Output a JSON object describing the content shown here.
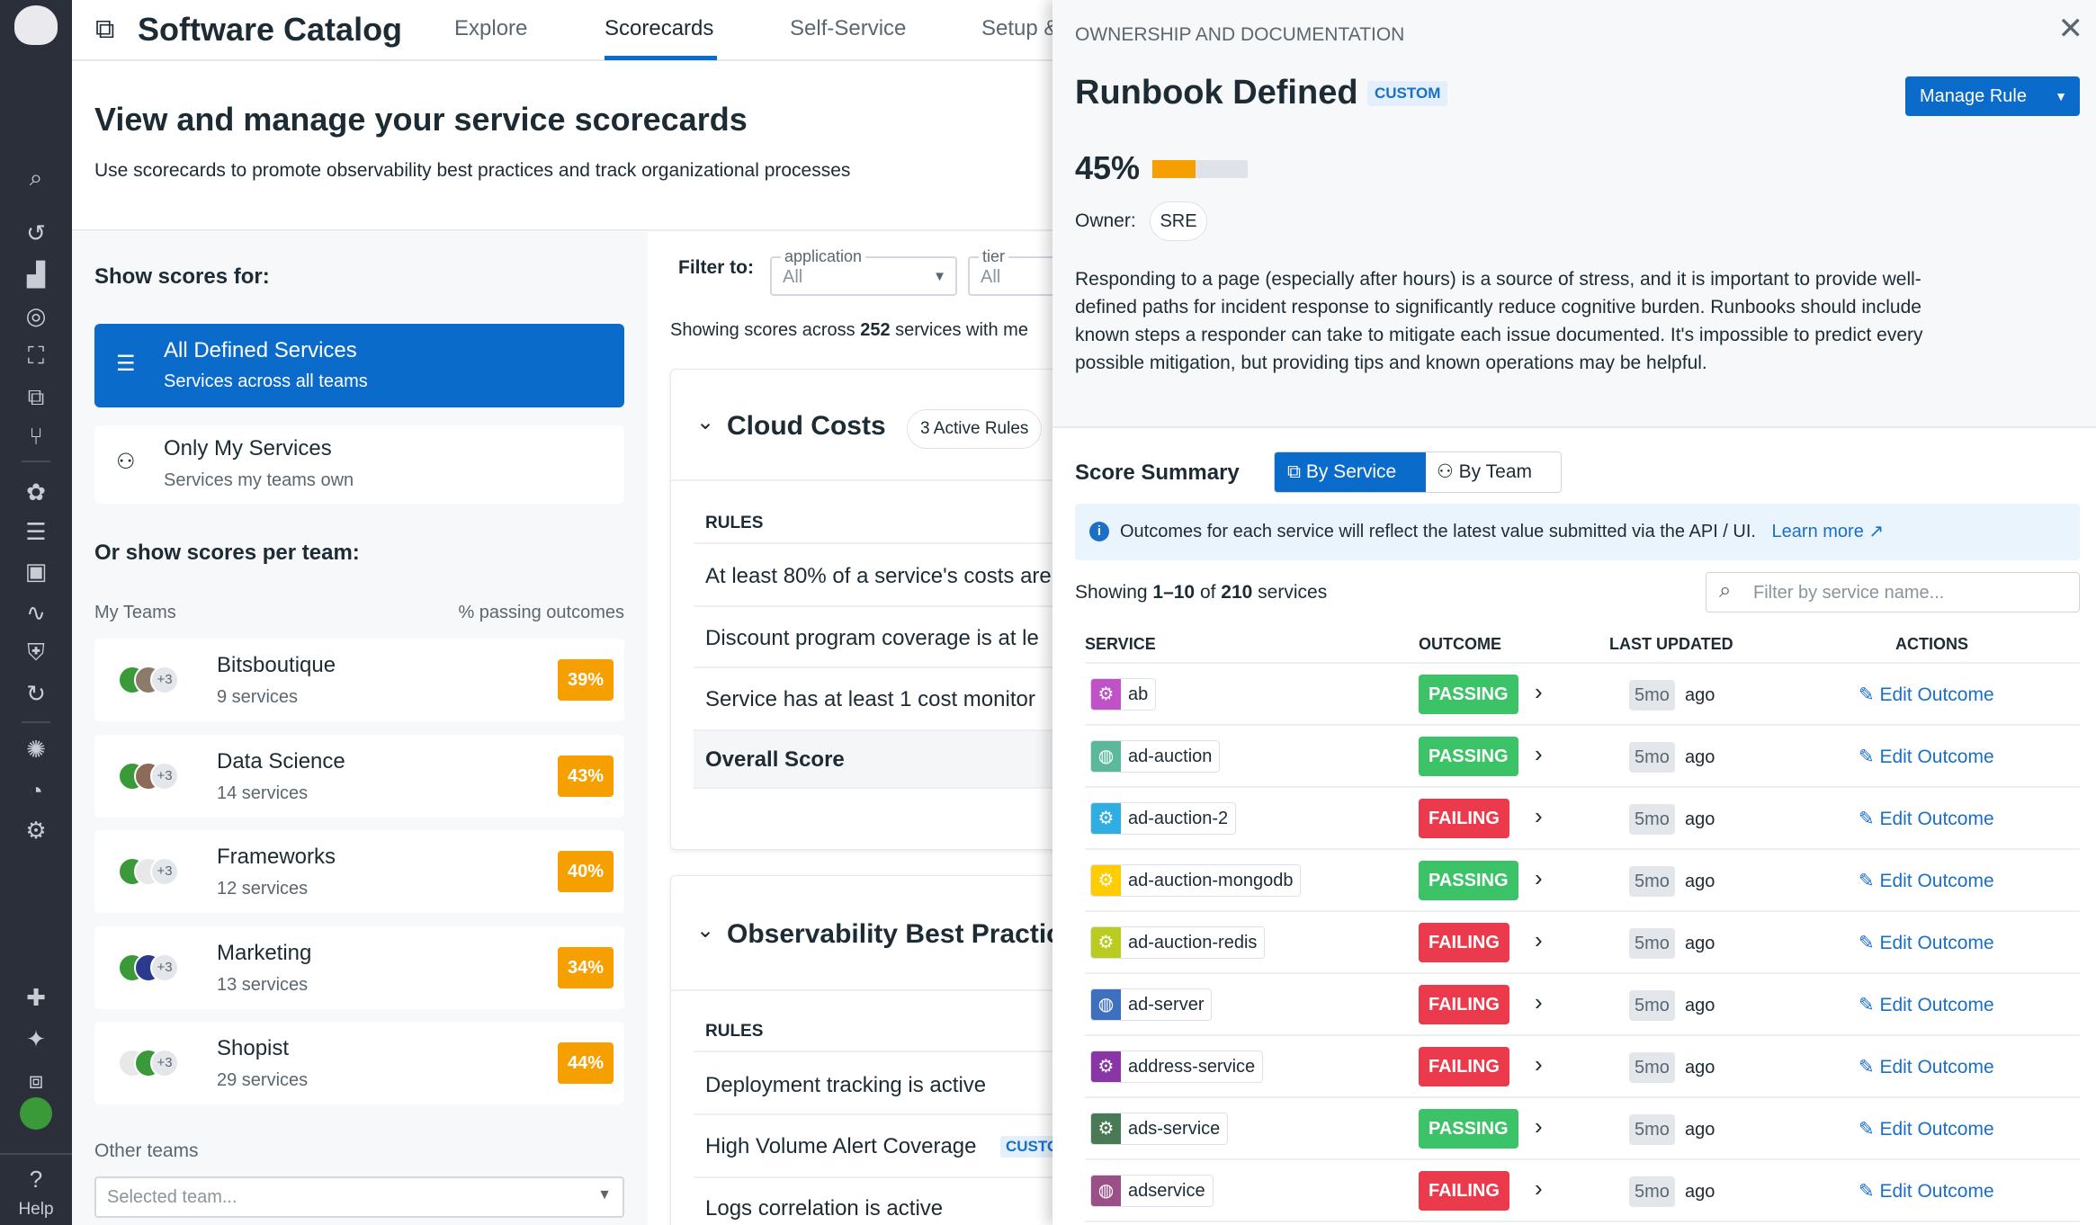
{
  "sidebar": {
    "icons": [
      "search-icon",
      "history-icon",
      "dashboard-icon",
      "target-icon",
      "binoculars-icon",
      "catalog-icon",
      "pipeline-icon",
      "apm-icon",
      "logs-icon",
      "infrastructure-icon",
      "workflow-icon",
      "security-icon",
      "synthetics-icon",
      "bug-icon",
      "performance-icon",
      "watchdog-icon",
      "integrations-icon",
      "ai-icon",
      "screens-icon"
    ],
    "help_label": "Help"
  },
  "header": {
    "title": "Software Catalog",
    "tabs": [
      "Explore",
      "Scorecards",
      "Self-Service",
      "Setup &"
    ],
    "active_tab": "Scorecards"
  },
  "hero": {
    "title": "View and manage your service scorecards",
    "subtitle": "Use scorecards to promote observability best practices and track organizational processes"
  },
  "left": {
    "show_scores_for": "Show scores for:",
    "options": [
      {
        "title": "All Defined Services",
        "subtitle": "Services across all teams",
        "selected": true
      },
      {
        "title": "Only My Services",
        "subtitle": "Services my teams own",
        "selected": false
      }
    ],
    "per_team": "Or show scores per team:",
    "my_teams": "My Teams",
    "pct_header": "% passing outcomes",
    "teams": [
      {
        "name": "Bitsboutique",
        "services": "9 services",
        "pct": "39%",
        "more": "+3"
      },
      {
        "name": "Data Science",
        "services": "14 services",
        "pct": "43%",
        "more": "+3"
      },
      {
        "name": "Frameworks",
        "services": "12 services",
        "pct": "40%",
        "more": "+3"
      },
      {
        "name": "Marketing",
        "services": "13 services",
        "pct": "34%",
        "more": "+3"
      },
      {
        "name": "Shopist",
        "services": "29 services",
        "pct": "44%",
        "more": "+3"
      }
    ],
    "other_teams": "Other teams",
    "team_select_placeholder": "Selected team..."
  },
  "mid": {
    "filter_label": "Filter to:",
    "filters": [
      {
        "label": "application",
        "value": "All"
      },
      {
        "label": "tier",
        "value": "All"
      }
    ],
    "showing_prefix": "Showing scores across ",
    "showing_count": "252",
    "showing_suffix": " services with me",
    "scorecards": [
      {
        "title": "Cloud Costs",
        "pill": "3 Active Rules",
        "rules_header": "RULES",
        "rules": [
          "At least 80% of a service's costs are",
          "Discount program coverage is at le",
          "Service has at least 1 cost monitor"
        ],
        "overall": "Overall Score"
      },
      {
        "title": "Observability Best Practic",
        "rules_header": "RULES",
        "rules": [
          "Deployment tracking is active",
          "High Volume Alert Coverage",
          "Logs correlation is active"
        ],
        "custom_badge": "CUSTO"
      }
    ]
  },
  "drawer": {
    "category": "OWNERSHIP AND DOCUMENTATION",
    "title": "Runbook Defined",
    "custom_badge": "CUSTOM",
    "manage_button": "Manage Rule",
    "score": "45%",
    "score_fraction": 0.45,
    "owner_label": "Owner:",
    "owner": "SRE",
    "description": "Responding to a page (especially after hours) is a source of stress, and it is important to provide well-defined paths for incident response to significantly reduce cognitive burden. Runbooks should include known steps a responder can take to mitigate each issue documented. It's impossible to predict every possible mitigation, but providing tips and known operations may be helpful.",
    "summary_title": "Score Summary",
    "toggle": [
      "By Service",
      "By Team"
    ],
    "info": "Outcomes for each service will reflect the latest value submitted via the API / UI.",
    "learn_more": "Learn more",
    "showing": {
      "prefix": "Showing ",
      "range": "1–10",
      "of": " of ",
      "total": "210",
      "suffix": " services"
    },
    "filter_placeholder": "Filter by service name...",
    "columns": [
      "SERVICE",
      "OUTCOME",
      "LAST UPDATED",
      "ACTIONS"
    ],
    "colors": {
      "passing": "#3cc367",
      "failing": "#ea3a4c",
      "accent": "#0b6bcb",
      "warning": "#f59f00"
    },
    "rows": [
      {
        "service": "ab",
        "icon": "gears-icon",
        "color": "#c051c9",
        "outcome": "PASSING",
        "age": "5mo",
        "ago": "ago",
        "action": "Edit Outcome"
      },
      {
        "service": "ad-auction",
        "icon": "globe-icon",
        "color": "#5bb89a",
        "outcome": "PASSING",
        "age": "5mo",
        "ago": "ago",
        "action": "Edit Outcome"
      },
      {
        "service": "ad-auction-2",
        "icon": "gears-icon",
        "color": "#2eaee3",
        "outcome": "FAILING",
        "age": "5mo",
        "ago": "ago",
        "action": "Edit Outcome"
      },
      {
        "service": "ad-auction-mongodb",
        "icon": "gears-icon",
        "color": "#ffcc00",
        "outcome": "PASSING",
        "age": "5mo",
        "ago": "ago",
        "action": "Edit Outcome"
      },
      {
        "service": "ad-auction-redis",
        "icon": "gears-icon",
        "color": "#b9cc1f",
        "outcome": "FAILING",
        "age": "5mo",
        "ago": "ago",
        "action": "Edit Outcome"
      },
      {
        "service": "ad-server",
        "icon": "globe-icon",
        "color": "#3f6fbf",
        "outcome": "FAILING",
        "age": "5mo",
        "ago": "ago",
        "action": "Edit Outcome"
      },
      {
        "service": "address-service",
        "icon": "gears-icon",
        "color": "#8a35a6",
        "outcome": "FAILING",
        "age": "5mo",
        "ago": "ago",
        "action": "Edit Outcome"
      },
      {
        "service": "ads-service",
        "icon": "gears-icon",
        "color": "#4a7a55",
        "outcome": "PASSING",
        "age": "5mo",
        "ago": "ago",
        "action": "Edit Outcome"
      },
      {
        "service": "adservice",
        "icon": "globe-icon",
        "color": "#9a4f86",
        "outcome": "FAILING",
        "age": "5mo",
        "ago": "ago",
        "action": "Edit Outcome"
      }
    ]
  }
}
